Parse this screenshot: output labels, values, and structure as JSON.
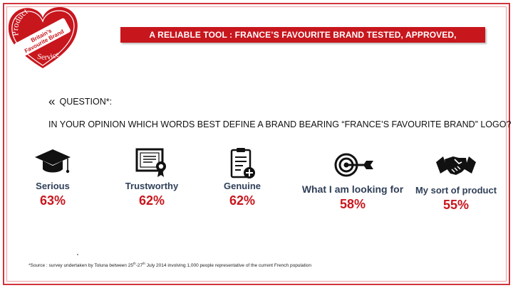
{
  "logo": {
    "line1": "Product",
    "line2": "Britain's",
    "line3": "Favourite Brand",
    "line4": "Service",
    "color": "#c8161d"
  },
  "banner": {
    "text": "A RELIABLE TOOL : FRANCE’S FAVOURITE BRAND TESTED, APPROVED, RECOGNIZED",
    "color": "#c8161d"
  },
  "question_label": "QUESTION*:",
  "question_quote": "«",
  "question_text": "IN YOUR OPINION WHICH WORDS BEST DEFINE A BRAND BEARING “FRANCE’S FAVOURITE BRAND” LOGO?",
  "results": [
    {
      "icon": "graduation-cap-icon",
      "label": "Serious",
      "value": "63%"
    },
    {
      "icon": "certificate-icon",
      "label": "Trustworthy",
      "value": "62%"
    },
    {
      "icon": "clipboard-plus-icon",
      "label": "Genuine",
      "value": "62%"
    },
    {
      "icon": "target-dart-icon",
      "label": "What I am looking for",
      "value": "58%"
    },
    {
      "icon": "handshake-icon",
      "label": "My sort of product",
      "value": "55%"
    }
  ],
  "footnote": {
    "pre": "*Source : survey undertaken by Toluna between 25",
    "sup1": "th",
    "mid": "-27",
    "sup2": "th",
    "post": " July 2014 involving 1,000 people representative of the current French population"
  }
}
